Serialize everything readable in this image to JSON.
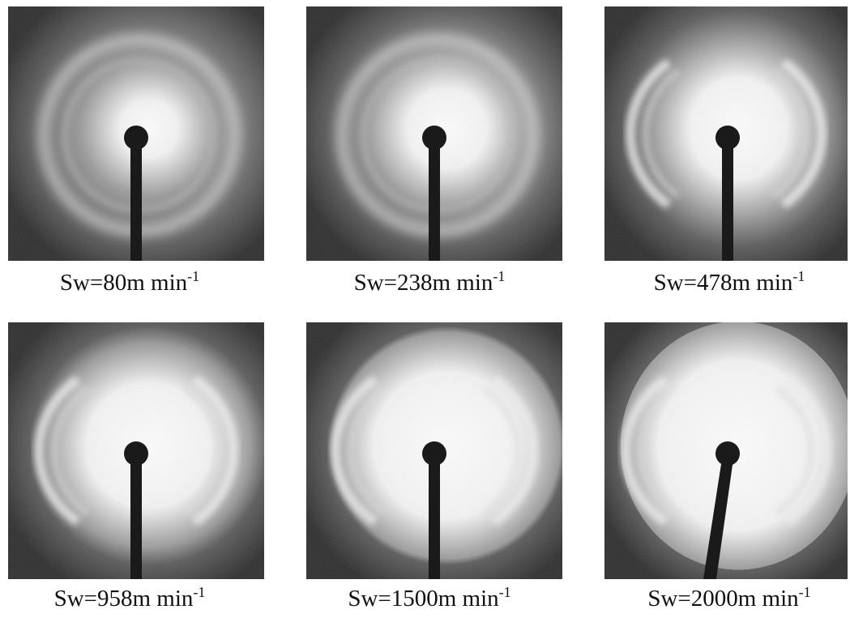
{
  "panels": [
    {
      "label": "Sw=80m min",
      "superscript": "-1"
    },
    {
      "label": "Sw=238m min",
      "superscript": "-1"
    },
    {
      "label": "Sw=478m min",
      "superscript": "-1"
    },
    {
      "label": "Sw=958m min",
      "superscript": "-1"
    },
    {
      "label": "Sw=1500m min",
      "superscript": "-1"
    },
    {
      "label": "Sw=2000m min",
      "superscript": "-1"
    }
  ]
}
